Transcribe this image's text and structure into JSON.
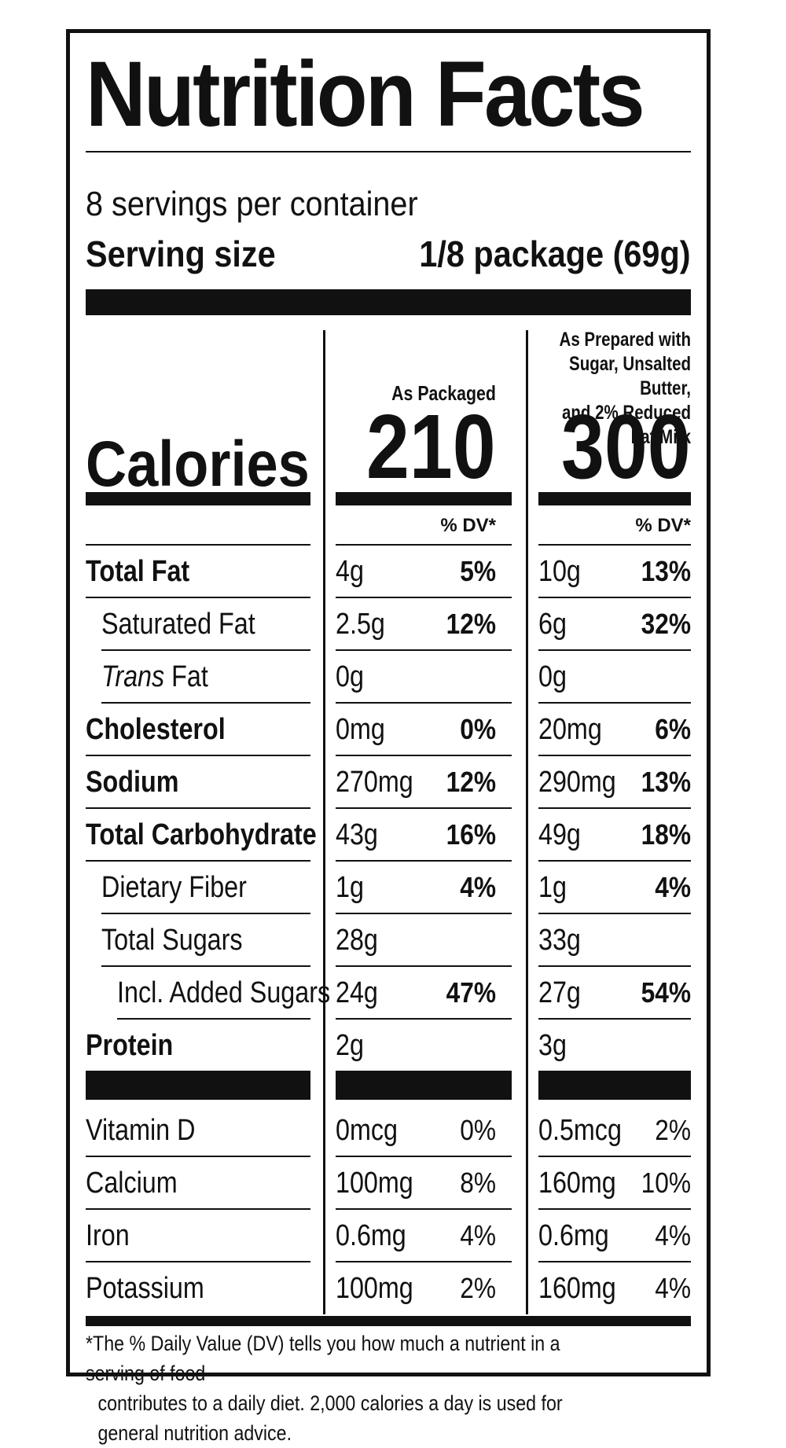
{
  "title": "Nutrition Facts",
  "servings_per_container": "8 servings per container",
  "serving_size_label": "Serving size",
  "serving_size_value": "1/8 package (69g)",
  "columns": {
    "packaged_heading": "As Packaged",
    "prepared_heading_lines": [
      "As Prepared with",
      "Sugar, Unsalted Butter,",
      "and 2% Reduced Fat Milk"
    ],
    "dv_heading": "% DV*"
  },
  "calories": {
    "label": "Calories",
    "packaged": "210",
    "prepared": "300"
  },
  "nutrients": [
    {
      "label": "Total Fat",
      "bold": true,
      "indent": 0,
      "pkg_amt": "4g",
      "pkg_dv": "5%",
      "prep_amt": "10g",
      "prep_dv": "13%"
    },
    {
      "label": "Saturated Fat",
      "bold": false,
      "indent": 1,
      "pkg_amt": "2.5g",
      "pkg_dv": "12%",
      "prep_amt": "6g",
      "prep_dv": "32%"
    },
    {
      "label_italic": "Trans",
      "label": " Fat",
      "bold": false,
      "indent": 1,
      "pkg_amt": "0g",
      "pkg_dv": "",
      "prep_amt": "0g",
      "prep_dv": ""
    },
    {
      "label": "Cholesterol",
      "bold": true,
      "indent": 0,
      "pkg_amt": "0mg",
      "pkg_dv": "0%",
      "prep_amt": "20mg",
      "prep_dv": "6%"
    },
    {
      "label": "Sodium",
      "bold": true,
      "indent": 0,
      "pkg_amt": "270mg",
      "pkg_dv": "12%",
      "prep_amt": "290mg",
      "prep_dv": "13%"
    },
    {
      "label": "Total Carbohydrate",
      "bold": true,
      "indent": 0,
      "pkg_amt": "43g",
      "pkg_dv": "16%",
      "prep_amt": "49g",
      "prep_dv": "18%"
    },
    {
      "label": "Dietary Fiber",
      "bold": false,
      "indent": 1,
      "pkg_amt": "1g",
      "pkg_dv": "4%",
      "prep_amt": "1g",
      "prep_dv": "4%"
    },
    {
      "label": "Total Sugars",
      "bold": false,
      "indent": 1,
      "pkg_amt": "28g",
      "pkg_dv": "",
      "prep_amt": "33g",
      "prep_dv": ""
    },
    {
      "label": "Incl. Added Sugars",
      "bold": false,
      "indent": 2,
      "pkg_amt": "24g",
      "pkg_dv": "47%",
      "prep_amt": "27g",
      "prep_dv": "54%"
    },
    {
      "label": "Protein",
      "bold": true,
      "indent": 0,
      "pkg_amt": "2g",
      "pkg_dv": "",
      "prep_amt": "3g",
      "prep_dv": ""
    }
  ],
  "vitamins": [
    {
      "label": "Vitamin D",
      "pkg_amt": "0mcg",
      "pkg_dv": "0%",
      "prep_amt": "0.5mcg",
      "prep_dv": "2%"
    },
    {
      "label": "Calcium",
      "pkg_amt": "100mg",
      "pkg_dv": "8%",
      "prep_amt": "160mg",
      "prep_dv": "10%"
    },
    {
      "label": "Iron",
      "pkg_amt": "0.6mg",
      "pkg_dv": "4%",
      "prep_amt": "0.6mg",
      "prep_dv": "4%"
    },
    {
      "label": "Potassium",
      "pkg_amt": "100mg",
      "pkg_dv": "2%",
      "prep_amt": "160mg",
      "prep_dv": "4%"
    }
  ],
  "footnote": {
    "line1": "*The % Daily Value (DV) tells you how much a nutrient in a serving of food",
    "line2": "contributes to a daily diet. 2,000 calories a day is used for general nutrition advice."
  }
}
